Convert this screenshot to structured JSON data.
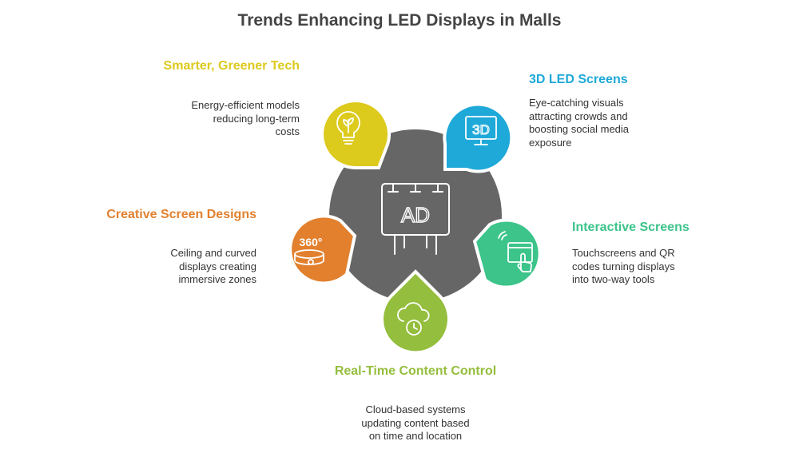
{
  "title": "Trends Enhancing LED Displays in Malls",
  "colors": {
    "hub": "#666666",
    "yellow": "#DCCA1D",
    "blue": "#1FA9D9",
    "green": "#3CC48A",
    "lime": "#94BE3D",
    "orange": "#E2802E"
  },
  "hub": {
    "icon": "billboard-icon",
    "text": "AD"
  },
  "items": [
    {
      "heading": "Smarter, Greener Tech",
      "description": [
        "Energy-efficient models",
        "reducing long-term",
        "costs"
      ],
      "icon": "lightbulb-leaf-icon",
      "color": "#DCCA1D"
    },
    {
      "heading": "3D LED Screens",
      "description": [
        "Eye-catching visuals",
        "attracting crowds and",
        "boosting social media",
        "exposure"
      ],
      "icon": "3d-monitor-icon",
      "icon_text": "3D",
      "color": "#1FA9D9"
    },
    {
      "heading": "Interactive Screens",
      "description": [
        "Touchscreens and QR",
        "codes turning displays",
        "into two-way tools"
      ],
      "icon": "touchscreen-icon",
      "color": "#3CC48A"
    },
    {
      "heading": "Real-Time Content Control",
      "description": [
        "Cloud-based systems",
        "updating content based",
        "on time and location"
      ],
      "icon": "cloud-clock-icon",
      "color": "#94BE3D"
    },
    {
      "heading": "Creative Screen Designs",
      "description": [
        "Ceiling and curved",
        "displays creating",
        "immersive zones"
      ],
      "icon": "360-view-icon",
      "icon_text": "360°",
      "color": "#E2802E"
    }
  ]
}
